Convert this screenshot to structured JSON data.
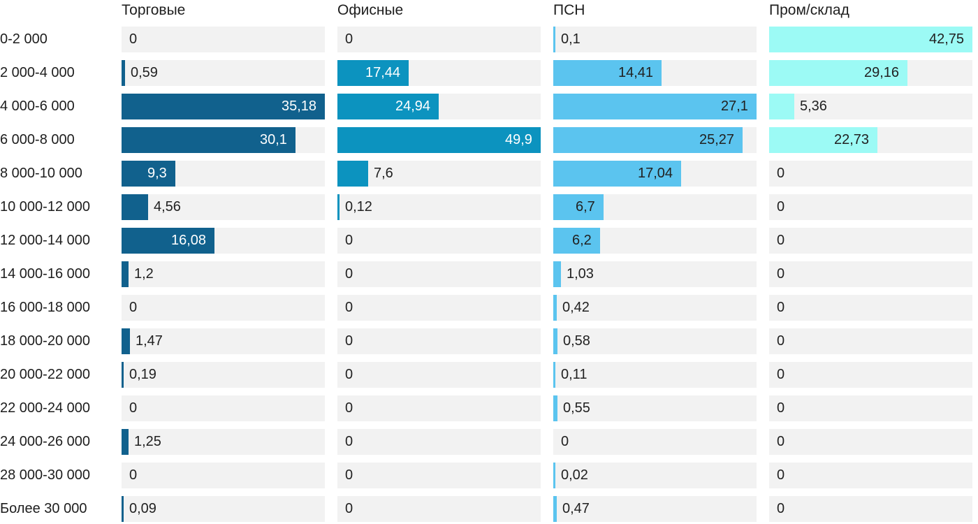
{
  "chart_data": {
    "type": "bar",
    "orientation": "horizontal",
    "title": "",
    "scaling": "each column scaled to its own max value",
    "grid": false,
    "legend_position": "column headers",
    "track_color": "#f2f2f2",
    "background_color": "#ffffff",
    "text_color": "#212121",
    "decimal_separator": ",",
    "categories": [
      "0-2 000",
      "2 000-4 000",
      "4 000-6 000",
      "6 000-8 000",
      "8 000-10 000",
      "10 000-12 000",
      "12 000-14 000",
      "14 000-16 000",
      "16 000-18 000",
      "18 000-20 000",
      "20 000-22 000",
      "22 000-24 000",
      "24 000-26 000",
      "28 000-30 000",
      "Более 30 000"
    ],
    "series": [
      {
        "name": "Торговые",
        "color": "#11618d",
        "label_inside_color": "#ffffff",
        "values": [
          0,
          0.59,
          35.18,
          30.1,
          9.3,
          4.56,
          16.08,
          1.2,
          0,
          1.47,
          0.19,
          0,
          1.25,
          0,
          0.09
        ]
      },
      {
        "name": "Офисные",
        "color": "#0c93bf",
        "label_inside_color": "#ffffff",
        "values": [
          0,
          17.44,
          24.94,
          49.9,
          7.6,
          0.12,
          0,
          0,
          0,
          0,
          0,
          0,
          0,
          0,
          0
        ]
      },
      {
        "name": "ПСН",
        "color": "#5bc4ef",
        "label_inside_color": "#212121",
        "values": [
          0.1,
          14.41,
          27.1,
          25.27,
          17.04,
          6.7,
          6.2,
          1.03,
          0.42,
          0.58,
          0.11,
          0.55,
          0,
          0.02,
          0.47
        ]
      },
      {
        "name": "Пром/склад",
        "color": "#9cfaf5",
        "label_inside_color": "#212121",
        "values": [
          42.75,
          29.16,
          5.36,
          22.73,
          0,
          0,
          0,
          0,
          0,
          0,
          0,
          0,
          0,
          0,
          0
        ]
      }
    ]
  }
}
